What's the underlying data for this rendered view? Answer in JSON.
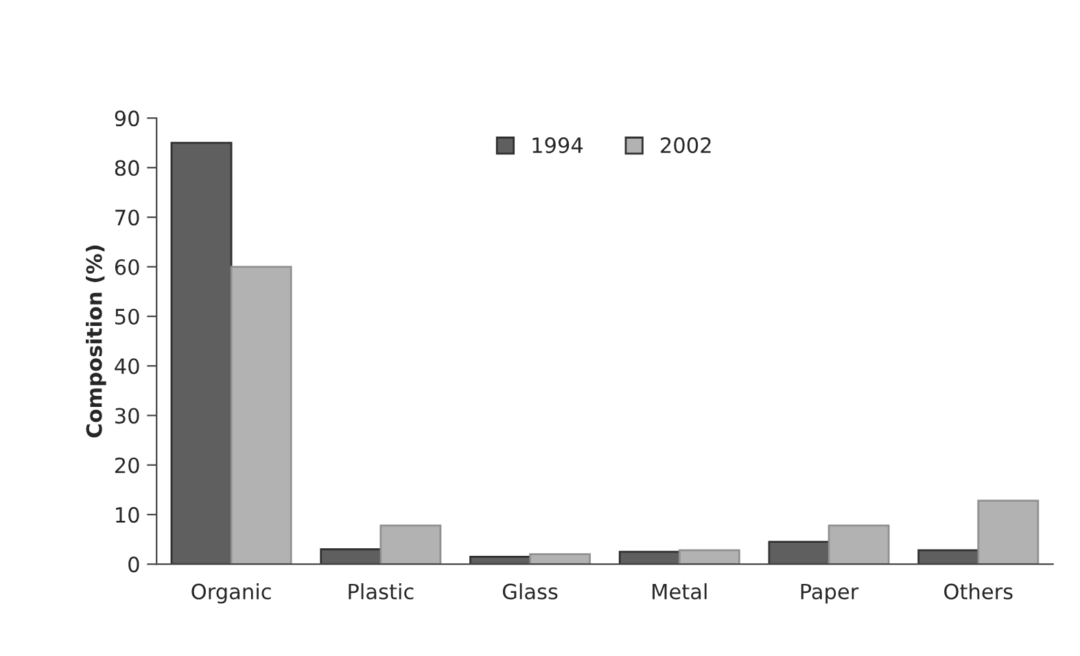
{
  "chart_data": {
    "type": "bar",
    "ylabel": "Composition (%)",
    "categories": [
      "Organic",
      "Plastic",
      "Glass",
      "Metal",
      "Paper",
      "Others"
    ],
    "series": [
      {
        "name": "1994",
        "color": "#5f5f5f",
        "values": [
          85,
          3,
          1.5,
          2.5,
          4.5,
          2.8
        ]
      },
      {
        "name": "2002",
        "color": "#b2b2b2",
        "values": [
          60,
          7.8,
          2,
          2.8,
          7.8,
          12.8
        ]
      }
    ],
    "ylim": [
      0,
      90
    ],
    "yticks": [
      0,
      10,
      20,
      30,
      40,
      50,
      60,
      70,
      80,
      90
    ],
    "grid": false,
    "legend": "top"
  }
}
